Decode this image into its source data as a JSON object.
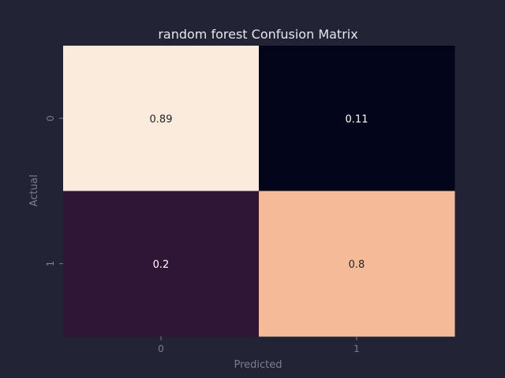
{
  "chart_data": {
    "type": "heatmap",
    "title": "random forest Confusion Matrix",
    "xlabel": "Predicted",
    "ylabel": "Actual",
    "x_categories": [
      "0",
      "1"
    ],
    "y_categories": [
      "0",
      "1"
    ],
    "values": [
      [
        0.89,
        0.11
      ],
      [
        0.2,
        0.8
      ]
    ],
    "cell_labels": [
      [
        "0.89",
        "0.11"
      ],
      [
        "0.2",
        "0.8"
      ]
    ],
    "colorscale": "rocket",
    "cell_colors": [
      [
        "#faebdd",
        "#03051a"
      ],
      [
        "#2f1637",
        "#f5bb99"
      ]
    ],
    "label_colors": [
      [
        "#262626",
        "#ffffff"
      ],
      [
        "#ffffff",
        "#262626"
      ]
    ],
    "colors": {
      "background": "#232336",
      "title": "#e6e6ef",
      "axis_text": "#7d7d92"
    },
    "grid": false,
    "legend": "none"
  }
}
